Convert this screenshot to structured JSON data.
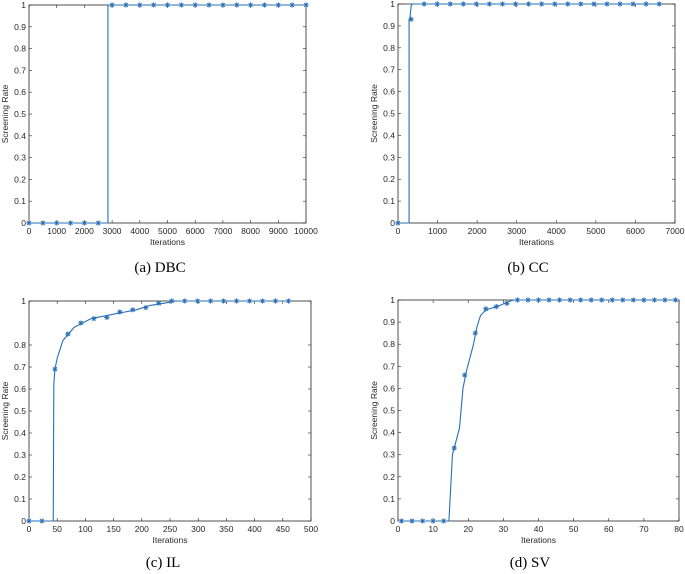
{
  "colors": {
    "series": "#2a6fb5",
    "axis": "#262626",
    "background": "#ffffff"
  },
  "chart_data": [
    {
      "type": "line",
      "caption": "(a) DBC",
      "xlabel": "Iterations",
      "ylabel": "Screening Rate",
      "xlim": [
        0,
        10000
      ],
      "ylim": [
        0,
        1
      ],
      "xticks": [
        0,
        1000,
        2000,
        3000,
        4000,
        5000,
        6000,
        7000,
        8000,
        9000,
        10000
      ],
      "yticks": [
        0,
        0.1,
        0.2,
        0.3,
        0.4,
        0.5,
        0.6,
        0.7,
        0.8,
        0.9,
        1
      ],
      "line": [
        [
          0,
          0
        ],
        [
          2850,
          0
        ],
        [
          2850,
          1
        ],
        [
          10000,
          1
        ]
      ],
      "markers": [
        [
          0,
          0
        ],
        [
          500,
          0
        ],
        [
          1000,
          0
        ],
        [
          1500,
          0
        ],
        [
          2000,
          0
        ],
        [
          2500,
          0
        ],
        [
          3000,
          1
        ],
        [
          3500,
          1
        ],
        [
          4000,
          1
        ],
        [
          4500,
          1
        ],
        [
          5000,
          1
        ],
        [
          5500,
          1
        ],
        [
          6000,
          1
        ],
        [
          6500,
          1
        ],
        [
          7000,
          1
        ],
        [
          7500,
          1
        ],
        [
          8000,
          1
        ],
        [
          8500,
          1
        ],
        [
          9000,
          1
        ],
        [
          9500,
          1
        ],
        [
          10000,
          1
        ]
      ]
    },
    {
      "type": "line",
      "caption": "(b) CC",
      "xlabel": "Iterations",
      "ylabel": "Screening Rate",
      "xlim": [
        0,
        7000
      ],
      "ylim": [
        0,
        1
      ],
      "xticks": [
        0,
        1000,
        2000,
        3000,
        4000,
        5000,
        6000,
        7000
      ],
      "yticks": [
        0,
        0.1,
        0.2,
        0.3,
        0.4,
        0.5,
        0.6,
        0.7,
        0.8,
        0.9,
        1
      ],
      "line": [
        [
          0,
          0
        ],
        [
          280,
          0
        ],
        [
          280,
          0.93
        ],
        [
          300,
          0.93
        ],
        [
          330,
          0.99
        ],
        [
          360,
          1
        ],
        [
          6600,
          1
        ]
      ],
      "markers": [
        [
          0,
          0
        ],
        [
          330,
          0.93
        ],
        [
          660,
          1
        ],
        [
          990,
          1
        ],
        [
          1320,
          1
        ],
        [
          1650,
          1
        ],
        [
          1980,
          1
        ],
        [
          2310,
          1
        ],
        [
          2640,
          1
        ],
        [
          2970,
          1
        ],
        [
          3300,
          1
        ],
        [
          3630,
          1
        ],
        [
          3960,
          1
        ],
        [
          4290,
          1
        ],
        [
          4620,
          1
        ],
        [
          4950,
          1
        ],
        [
          5280,
          1
        ],
        [
          5610,
          1
        ],
        [
          5940,
          1
        ],
        [
          6270,
          1
        ],
        [
          6600,
          1
        ]
      ]
    },
    {
      "type": "line",
      "caption": "(c) IL",
      "xlabel": "Iterations",
      "ylabel": "Screening Rate",
      "xlim": [
        0,
        500
      ],
      "ylim": [
        0,
        1
      ],
      "xticks": [
        0,
        50,
        100,
        150,
        200,
        250,
        300,
        350,
        400,
        450,
        500
      ],
      "yticks": [
        0,
        0.1,
        0.2,
        0.3,
        0.4,
        0.5,
        0.6,
        0.7,
        0.8,
        1
      ],
      "line": [
        [
          0,
          0
        ],
        [
          43,
          0
        ],
        [
          44,
          0.62
        ],
        [
          46,
          0.69
        ],
        [
          50,
          0.74
        ],
        [
          55,
          0.78
        ],
        [
          60,
          0.82
        ],
        [
          70,
          0.85
        ],
        [
          80,
          0.88
        ],
        [
          95,
          0.9
        ],
        [
          110,
          0.92
        ],
        [
          130,
          0.93
        ],
        [
          150,
          0.94
        ],
        [
          170,
          0.95
        ],
        [
          190,
          0.96
        ],
        [
          215,
          0.98
        ],
        [
          240,
          0.99
        ],
        [
          260,
          1
        ],
        [
          462,
          1
        ]
      ],
      "markers": [
        [
          0,
          0
        ],
        [
          23,
          0
        ],
        [
          46,
          0.69
        ],
        [
          69,
          0.85
        ],
        [
          92,
          0.9
        ],
        [
          115,
          0.92
        ],
        [
          138,
          0.925
        ],
        [
          161,
          0.95
        ],
        [
          184,
          0.96
        ],
        [
          207,
          0.97
        ],
        [
          230,
          0.99
        ],
        [
          253,
          1
        ],
        [
          276,
          1
        ],
        [
          299,
          1
        ],
        [
          322,
          1
        ],
        [
          345,
          1
        ],
        [
          368,
          1
        ],
        [
          391,
          1
        ],
        [
          414,
          1
        ],
        [
          437,
          1
        ],
        [
          460,
          1
        ]
      ]
    },
    {
      "type": "line",
      "caption": "(d) SV",
      "xlabel": "Iterations",
      "ylabel": "Screening Rate",
      "xlim": [
        0,
        80
      ],
      "ylim": [
        0,
        1
      ],
      "xticks": [
        0,
        10,
        20,
        30,
        40,
        50,
        60,
        70,
        80
      ],
      "yticks": [
        0,
        0.1,
        0.2,
        0.3,
        0.4,
        0.5,
        0.6,
        0.7,
        0.8,
        0.9,
        1
      ],
      "line": [
        [
          0,
          0
        ],
        [
          14.5,
          0
        ],
        [
          15.5,
          0.3
        ],
        [
          16.5,
          0.36
        ],
        [
          17.5,
          0.42
        ],
        [
          18.5,
          0.6
        ],
        [
          19.5,
          0.68
        ],
        [
          20.5,
          0.74
        ],
        [
          21.5,
          0.8
        ],
        [
          22.5,
          0.88
        ],
        [
          23.5,
          0.93
        ],
        [
          25,
          0.955
        ],
        [
          27,
          0.965
        ],
        [
          29,
          0.975
        ],
        [
          31,
          0.99
        ],
        [
          33,
          1
        ],
        [
          80,
          1
        ]
      ],
      "markers": [
        [
          1,
          0
        ],
        [
          4,
          0
        ],
        [
          7,
          0
        ],
        [
          10,
          0
        ],
        [
          13,
          0
        ],
        [
          16,
          0.33
        ],
        [
          19,
          0.66
        ],
        [
          22,
          0.85
        ],
        [
          25,
          0.96
        ],
        [
          28,
          0.97
        ],
        [
          31,
          0.985
        ],
        [
          34,
          1
        ],
        [
          37,
          1
        ],
        [
          40,
          1
        ],
        [
          43,
          1
        ],
        [
          46,
          1
        ],
        [
          49,
          1
        ],
        [
          52,
          1
        ],
        [
          55,
          1
        ],
        [
          58,
          1
        ],
        [
          61,
          1
        ],
        [
          64,
          1
        ],
        [
          67,
          1
        ],
        [
          70,
          1
        ],
        [
          73,
          1
        ],
        [
          76,
          1
        ],
        [
          79,
          1
        ]
      ]
    }
  ]
}
